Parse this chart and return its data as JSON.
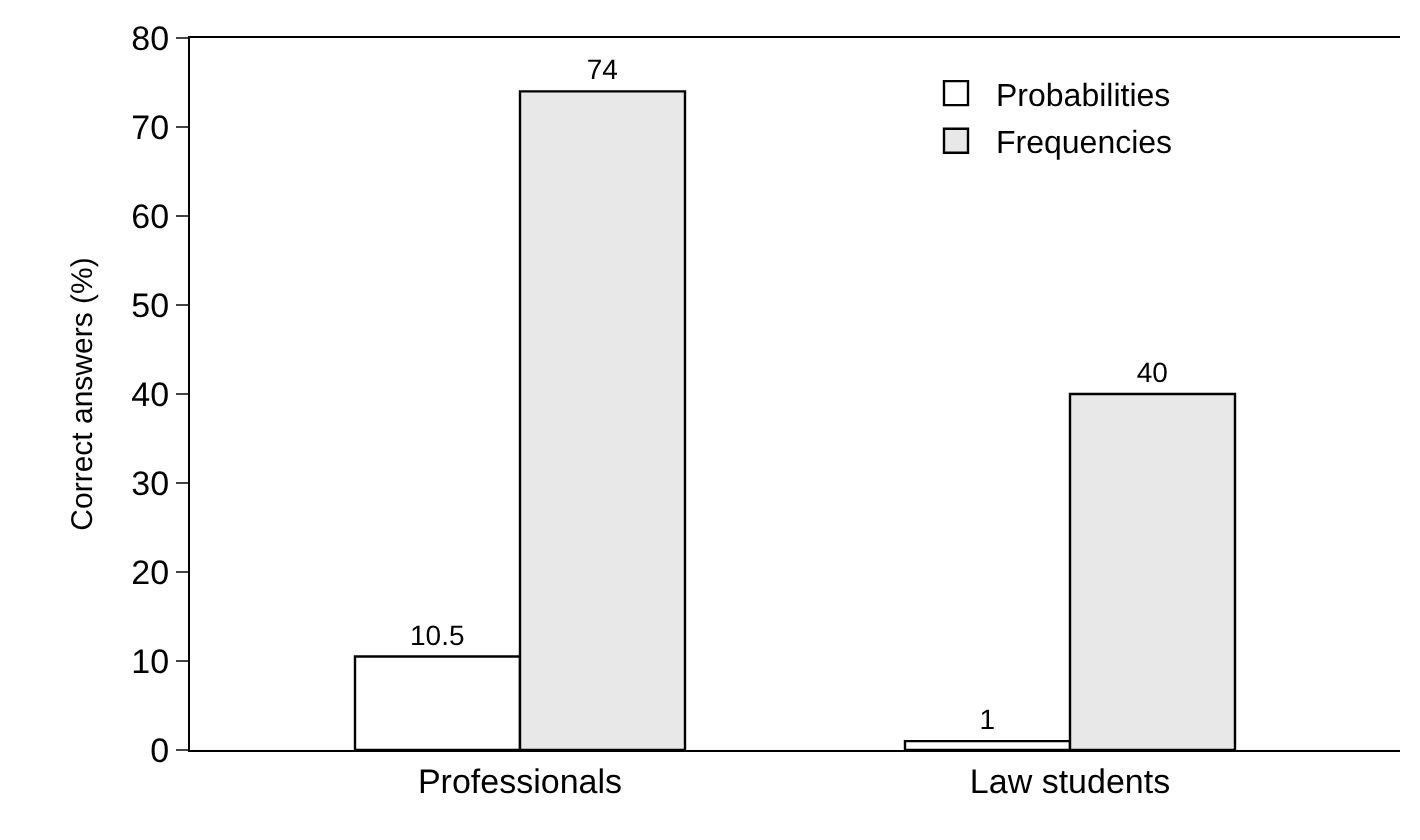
{
  "chart_data": {
    "type": "bar",
    "ylabel": "Correct answers (%)",
    "categories": [
      "Professionals",
      "Law students"
    ],
    "series": [
      {
        "name": "Probabilities",
        "color": "#ffffff",
        "values": [
          10.5,
          1
        ]
      },
      {
        "name": "Frequencies",
        "color": "#e8e8e8",
        "values": [
          74,
          40
        ]
      }
    ],
    "ylim": [
      0,
      80
    ],
    "yticks": [
      0,
      10,
      20,
      30,
      40,
      50,
      60,
      70,
      80
    ],
    "data_labels": true,
    "legend": "top right"
  }
}
